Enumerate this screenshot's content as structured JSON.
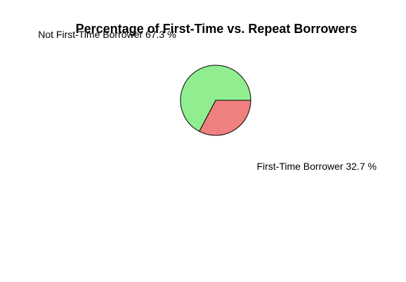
{
  "chart_data": {
    "type": "pie",
    "title": "Percentage of First-Time vs. Repeat Borrowers",
    "slices": [
      {
        "label": "First-Time Borrower 32.7 %",
        "category": "First-Time Borrower",
        "value": 32.7,
        "color": "#F08080"
      },
      {
        "label": "Not First-Time Borrower 67.3 %",
        "category": "Not First-Time Borrower",
        "value": 67.3,
        "color": "#90EE90"
      }
    ],
    "start_angle_deg": 0,
    "direction": "clockwise",
    "legend": "none"
  }
}
